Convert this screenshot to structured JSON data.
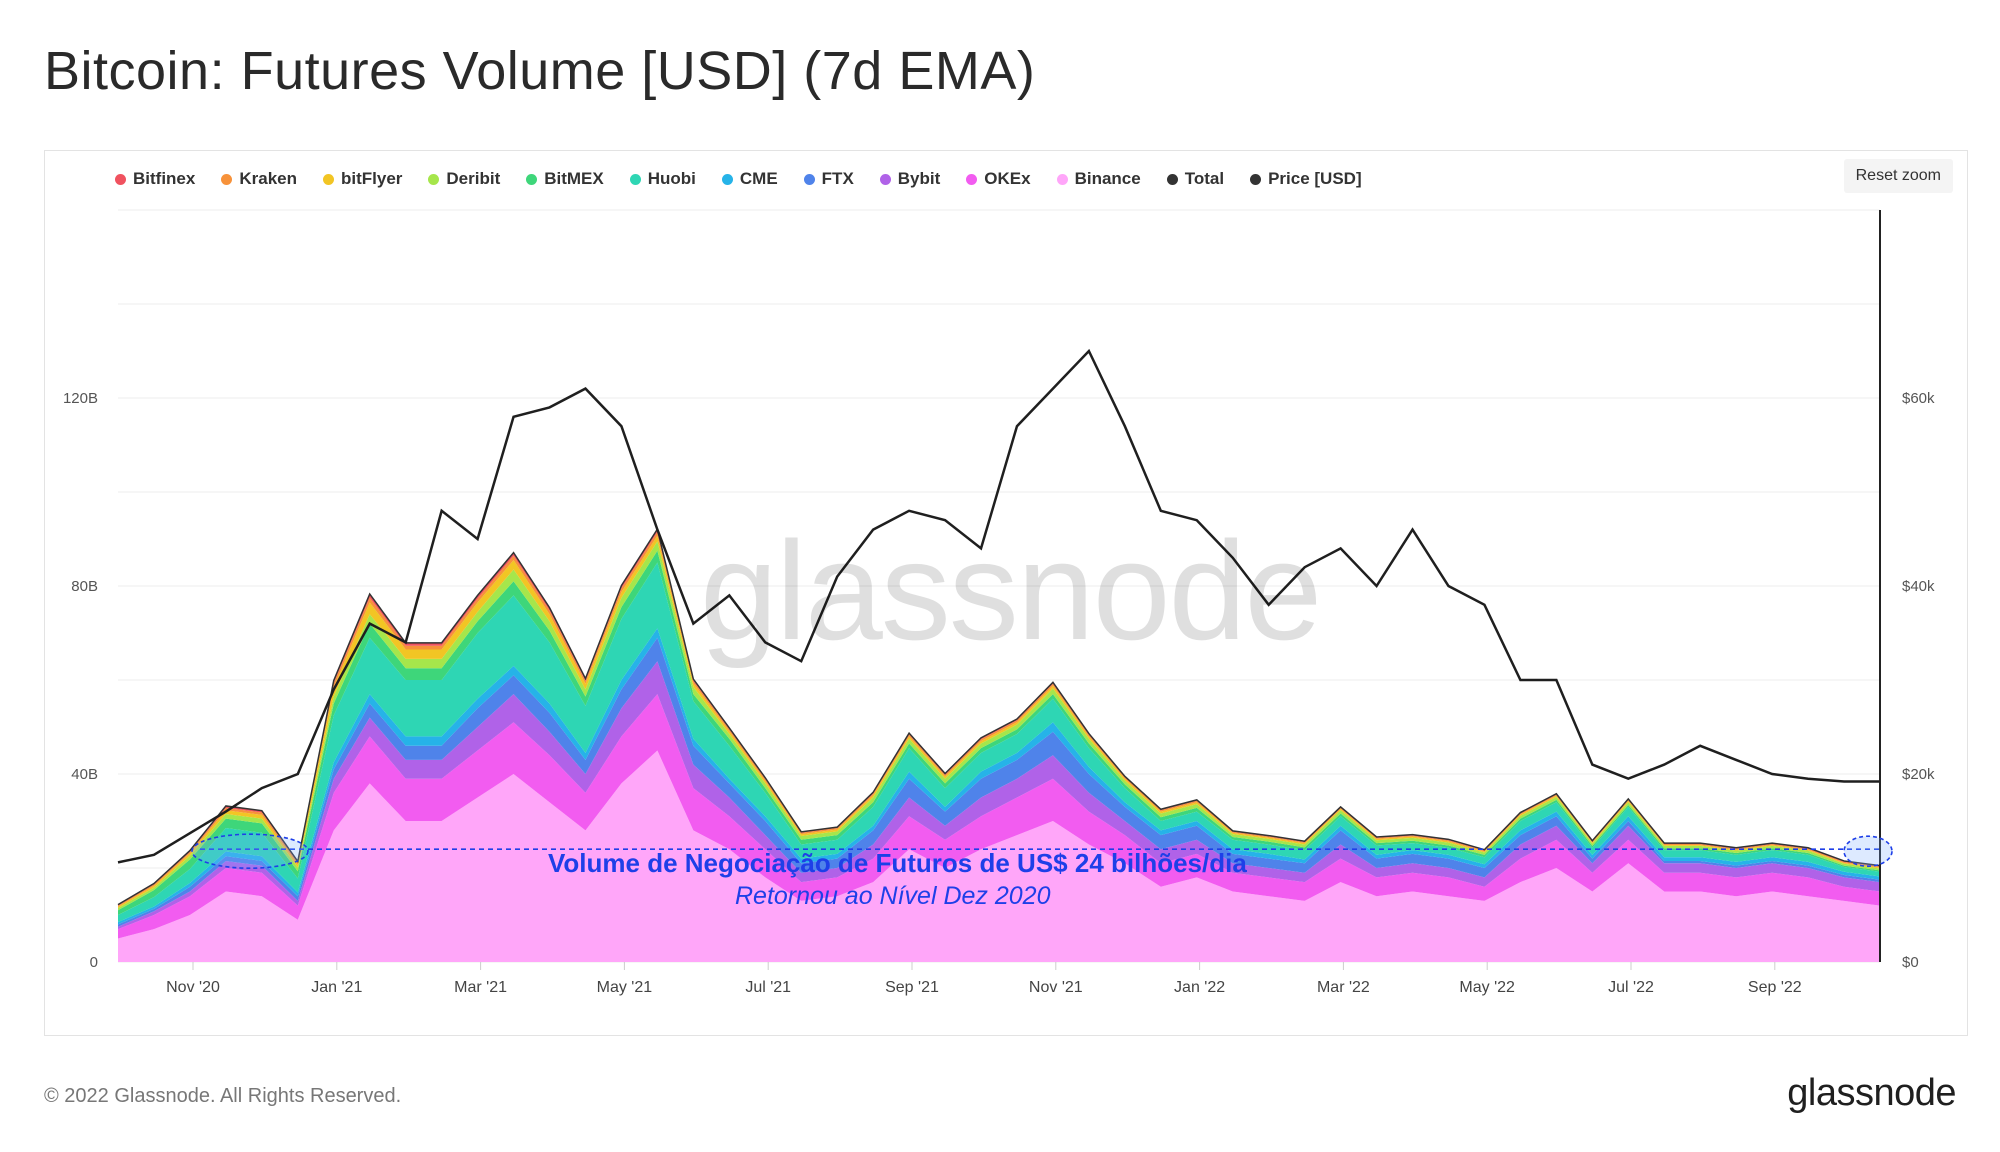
{
  "title": "Bitcoin: Futures Volume [USD] (7d EMA)",
  "reset_zoom_label": "Reset zoom",
  "watermark": "glassnode",
  "footer": {
    "copyright": "© 2022 Glassnode. All Rights Reserved.",
    "logo": "glassnode"
  },
  "annotation": {
    "main": "Volume de Negociação de Futuros de US$ 24 bilhões/dia",
    "sub": "Retornou ao Nível Dez 2020",
    "level": 24,
    "color": "#1e3fe8"
  },
  "legend": [
    {
      "label": "Bitfinex",
      "color": "#f0525f"
    },
    {
      "label": "Kraken",
      "color": "#f7923a"
    },
    {
      "label": "bitFlyer",
      "color": "#f2c524"
    },
    {
      "label": "Deribit",
      "color": "#a6e64b"
    },
    {
      "label": "BitMEX",
      "color": "#3ed67a"
    },
    {
      "label": "Huobi",
      "color": "#2ed6b4"
    },
    {
      "label": "CME",
      "color": "#26b3e8"
    },
    {
      "label": "FTX",
      "color": "#4f83ea"
    },
    {
      "label": "Bybit",
      "color": "#b062e8"
    },
    {
      "label": "OKEx",
      "color": "#f25cf0"
    },
    {
      "label": "Binance",
      "color": "#ffa6f9"
    },
    {
      "label": "Total",
      "color": "#333333"
    },
    {
      "label": "Price [USD]",
      "color": "#333333"
    }
  ],
  "chart_data": {
    "type": "area",
    "stacked": true,
    "title": "Bitcoin: Futures Volume [USD] (7d EMA)",
    "x_tick_labels": [
      "Nov '20",
      "Jan '21",
      "Mar '21",
      "May '21",
      "Jul '21",
      "Sep '21",
      "Nov '21",
      "Jan '22",
      "Mar '22",
      "May '22",
      "Jul '22",
      "Sep '22"
    ],
    "y_left_tick_labels": [
      "0",
      "40B",
      "80B",
      "120B"
    ],
    "y_left_ticks": [
      0,
      40,
      80,
      120
    ],
    "y_left_range": [
      0,
      160
    ],
    "y_left_unit": "B",
    "y_right_tick_labels": [
      "$0",
      "$20k",
      "$40k",
      "$60k"
    ],
    "y_right_ticks": [
      0,
      20000,
      40000,
      60000
    ],
    "y_right_range": [
      0,
      80000
    ],
    "grid": true,
    "legend_position": "top-left",
    "x": [
      "2020-10-01",
      "2020-10-15",
      "2020-11-01",
      "2020-11-15",
      "2020-12-01",
      "2020-12-15",
      "2021-01-01",
      "2021-01-15",
      "2021-02-01",
      "2021-02-15",
      "2021-03-01",
      "2021-03-15",
      "2021-04-01",
      "2021-04-15",
      "2021-05-01",
      "2021-05-15",
      "2021-06-01",
      "2021-06-15",
      "2021-07-01",
      "2021-07-15",
      "2021-08-01",
      "2021-08-15",
      "2021-09-01",
      "2021-09-15",
      "2021-10-01",
      "2021-10-15",
      "2021-11-01",
      "2021-11-15",
      "2021-12-01",
      "2021-12-15",
      "2022-01-01",
      "2022-01-15",
      "2022-02-01",
      "2022-02-15",
      "2022-03-01",
      "2022-03-15",
      "2022-04-01",
      "2022-04-15",
      "2022-05-01",
      "2022-05-15",
      "2022-06-01",
      "2022-06-15",
      "2022-07-01",
      "2022-07-15",
      "2022-08-01",
      "2022-08-15",
      "2022-09-01",
      "2022-09-15",
      "2022-10-01",
      "2022-10-15"
    ],
    "series": [
      {
        "name": "Binance",
        "values": [
          5,
          7,
          10,
          15,
          14,
          9,
          28,
          38,
          30,
          30,
          35,
          40,
          34,
          28,
          38,
          45,
          28,
          24,
          18,
          13,
          14,
          17,
          24,
          20,
          24,
          27,
          30,
          25,
          21,
          16,
          18,
          15,
          14,
          13,
          17,
          14,
          15,
          14,
          13,
          17,
          20,
          15,
          21,
          15,
          15,
          14,
          15,
          14,
          13,
          12
        ]
      },
      {
        "name": "OKEx",
        "values": [
          2,
          3,
          4,
          5,
          5,
          3,
          8,
          10,
          9,
          9,
          10,
          11,
          10,
          8,
          10,
          12,
          9,
          7,
          6,
          4,
          4,
          5,
          7,
          6,
          7,
          8,
          9,
          7,
          6,
          5,
          5,
          4,
          4,
          4,
          5,
          4,
          4,
          4,
          3,
          5,
          6,
          4,
          5,
          4,
          4,
          4,
          4,
          4,
          3,
          3
        ]
      },
      {
        "name": "Bybit",
        "values": [
          0.5,
          0.8,
          1,
          1.5,
          1.5,
          1,
          3,
          4,
          4,
          4,
          5,
          6,
          5,
          4,
          6,
          7,
          5,
          4,
          3,
          2,
          2,
          3,
          4,
          3,
          4,
          4,
          5,
          4,
          3,
          3,
          3,
          2,
          2,
          2,
          3,
          2,
          2,
          2,
          2,
          3,
          3,
          2,
          3,
          2,
          2,
          2,
          2,
          2,
          2,
          2
        ]
      },
      {
        "name": "FTX",
        "values": [
          0.5,
          0.5,
          1,
          1,
          1,
          1,
          2,
          3,
          3,
          3,
          4,
          4,
          4,
          3,
          4,
          5,
          4,
          3,
          3,
          2,
          2,
          3,
          4,
          3,
          4,
          4,
          5,
          4,
          3,
          3,
          3,
          2,
          2,
          2,
          3,
          2,
          2,
          2,
          2,
          2,
          2,
          1,
          1,
          0.5,
          0.5,
          0.5,
          0.5,
          0.5,
          0.5,
          0.5
        ]
      },
      {
        "name": "CME",
        "values": [
          0.5,
          0.5,
          0.8,
          1,
          1,
          0.8,
          1.5,
          2,
          2,
          2,
          2,
          2,
          2,
          1.5,
          2,
          2,
          1.5,
          1,
          1,
          1,
          1,
          1,
          1.5,
          1,
          1.5,
          1.5,
          2,
          1.5,
          1,
          1,
          1,
          1,
          1,
          0.8,
          1,
          0.8,
          0.8,
          0.8,
          0.8,
          1,
          1,
          0.8,
          1,
          0.8,
          0.8,
          0.8,
          0.8,
          0.8,
          0.7,
          0.7
        ]
      },
      {
        "name": "Huobi",
        "values": [
          1.5,
          2,
          3,
          5,
          5,
          3,
          10,
          12,
          12,
          12,
          14,
          15,
          13,
          10,
          13,
          14,
          8,
          7,
          5,
          3,
          3,
          4,
          5,
          4,
          4,
          4,
          5,
          4,
          3,
          2,
          2,
          2,
          2,
          2,
          2,
          2,
          1.5,
          1.5,
          1.5,
          2,
          2,
          1.5,
          2,
          1.5,
          1.5,
          1.5,
          1.5,
          1.5,
          1,
          1
        ]
      },
      {
        "name": "BitMEX",
        "values": [
          1,
          1.5,
          2,
          2,
          2,
          1.5,
          2.5,
          3,
          2.5,
          2.5,
          2.5,
          3,
          2.5,
          2,
          2.5,
          2.5,
          1.5,
          1.5,
          1,
          1,
          1,
          1,
          1,
          1,
          1,
          1,
          1,
          1,
          0.8,
          0.8,
          0.8,
          0.6,
          0.6,
          0.6,
          0.6,
          0.5,
          0.5,
          0.5,
          0.5,
          0.5,
          0.5,
          0.4,
          0.4,
          0.4,
          0.4,
          0.4,
          0.4,
          0.4,
          0.3,
          0.3
        ]
      },
      {
        "name": "Deribit",
        "values": [
          0.5,
          0.5,
          0.8,
          1,
          1,
          0.8,
          1.5,
          2,
          2,
          2,
          2,
          2.5,
          2,
          1.5,
          2,
          2,
          1.5,
          1,
          1,
          0.8,
          0.8,
          1,
          1,
          1,
          1,
          1,
          1.2,
          1,
          0.8,
          0.8,
          0.8,
          0.6,
          0.6,
          0.6,
          0.7,
          0.6,
          0.6,
          0.6,
          0.5,
          0.6,
          0.6,
          0.5,
          0.6,
          0.5,
          0.5,
          0.5,
          0.5,
          0.5,
          0.4,
          0.4
        ]
      },
      {
        "name": "bitFlyer",
        "values": [
          0.3,
          0.4,
          0.5,
          0.8,
          0.8,
          0.6,
          2,
          2.5,
          2,
          2,
          2,
          2,
          1.5,
          1.2,
          1.2,
          1.2,
          0.8,
          0.6,
          0.5,
          0.4,
          0.4,
          0.5,
          0.5,
          0.5,
          0.5,
          0.5,
          0.6,
          0.5,
          0.4,
          0.4,
          0.4,
          0.3,
          0.3,
          0.3,
          0.3,
          0.3,
          0.3,
          0.3,
          0.2,
          0.3,
          0.3,
          0.2,
          0.3,
          0.2,
          0.2,
          0.2,
          0.2,
          0.2,
          0.2,
          0.2
        ]
      },
      {
        "name": "Kraken",
        "values": [
          0.2,
          0.3,
          0.3,
          0.5,
          0.5,
          0.4,
          0.8,
          1,
          0.8,
          0.8,
          0.8,
          0.9,
          0.8,
          0.6,
          0.8,
          0.8,
          0.5,
          0.4,
          0.4,
          0.3,
          0.3,
          0.3,
          0.4,
          0.3,
          0.4,
          0.4,
          0.4,
          0.3,
          0.3,
          0.3,
          0.3,
          0.2,
          0.2,
          0.2,
          0.2,
          0.2,
          0.2,
          0.2,
          0.2,
          0.2,
          0.2,
          0.2,
          0.2,
          0.2,
          0.2,
          0.2,
          0.2,
          0.2,
          0.2,
          0.2
        ]
      },
      {
        "name": "Bitfinex",
        "values": [
          0.2,
          0.2,
          0.3,
          0.4,
          0.4,
          0.3,
          0.6,
          0.8,
          0.6,
          0.6,
          0.7,
          0.7,
          0.6,
          0.5,
          0.6,
          0.6,
          0.4,
          0.3,
          0.3,
          0.2,
          0.2,
          0.3,
          0.3,
          0.3,
          0.3,
          0.3,
          0.3,
          0.3,
          0.2,
          0.2,
          0.2,
          0.2,
          0.2,
          0.2,
          0.2,
          0.2,
          0.2,
          0.2,
          0.2,
          0.2,
          0.2,
          0.2,
          0.2,
          0.2,
          0.2,
          0.2,
          0.2,
          0.2,
          0.2,
          0.2
        ]
      }
    ],
    "price_usd": [
      10600,
      11400,
      13700,
      16000,
      18500,
      20000,
      29000,
      36000,
      34000,
      48000,
      45000,
      58000,
      59000,
      61000,
      57000,
      46000,
      36000,
      39000,
      34000,
      32000,
      41000,
      46000,
      48000,
      47000,
      44000,
      57000,
      61000,
      65000,
      57000,
      48000,
      47000,
      43000,
      38000,
      42000,
      44000,
      40000,
      46000,
      40000,
      38000,
      30000,
      30000,
      21000,
      19500,
      21000,
      23000,
      21500,
      20000,
      19500,
      19200,
      19200
    ]
  }
}
